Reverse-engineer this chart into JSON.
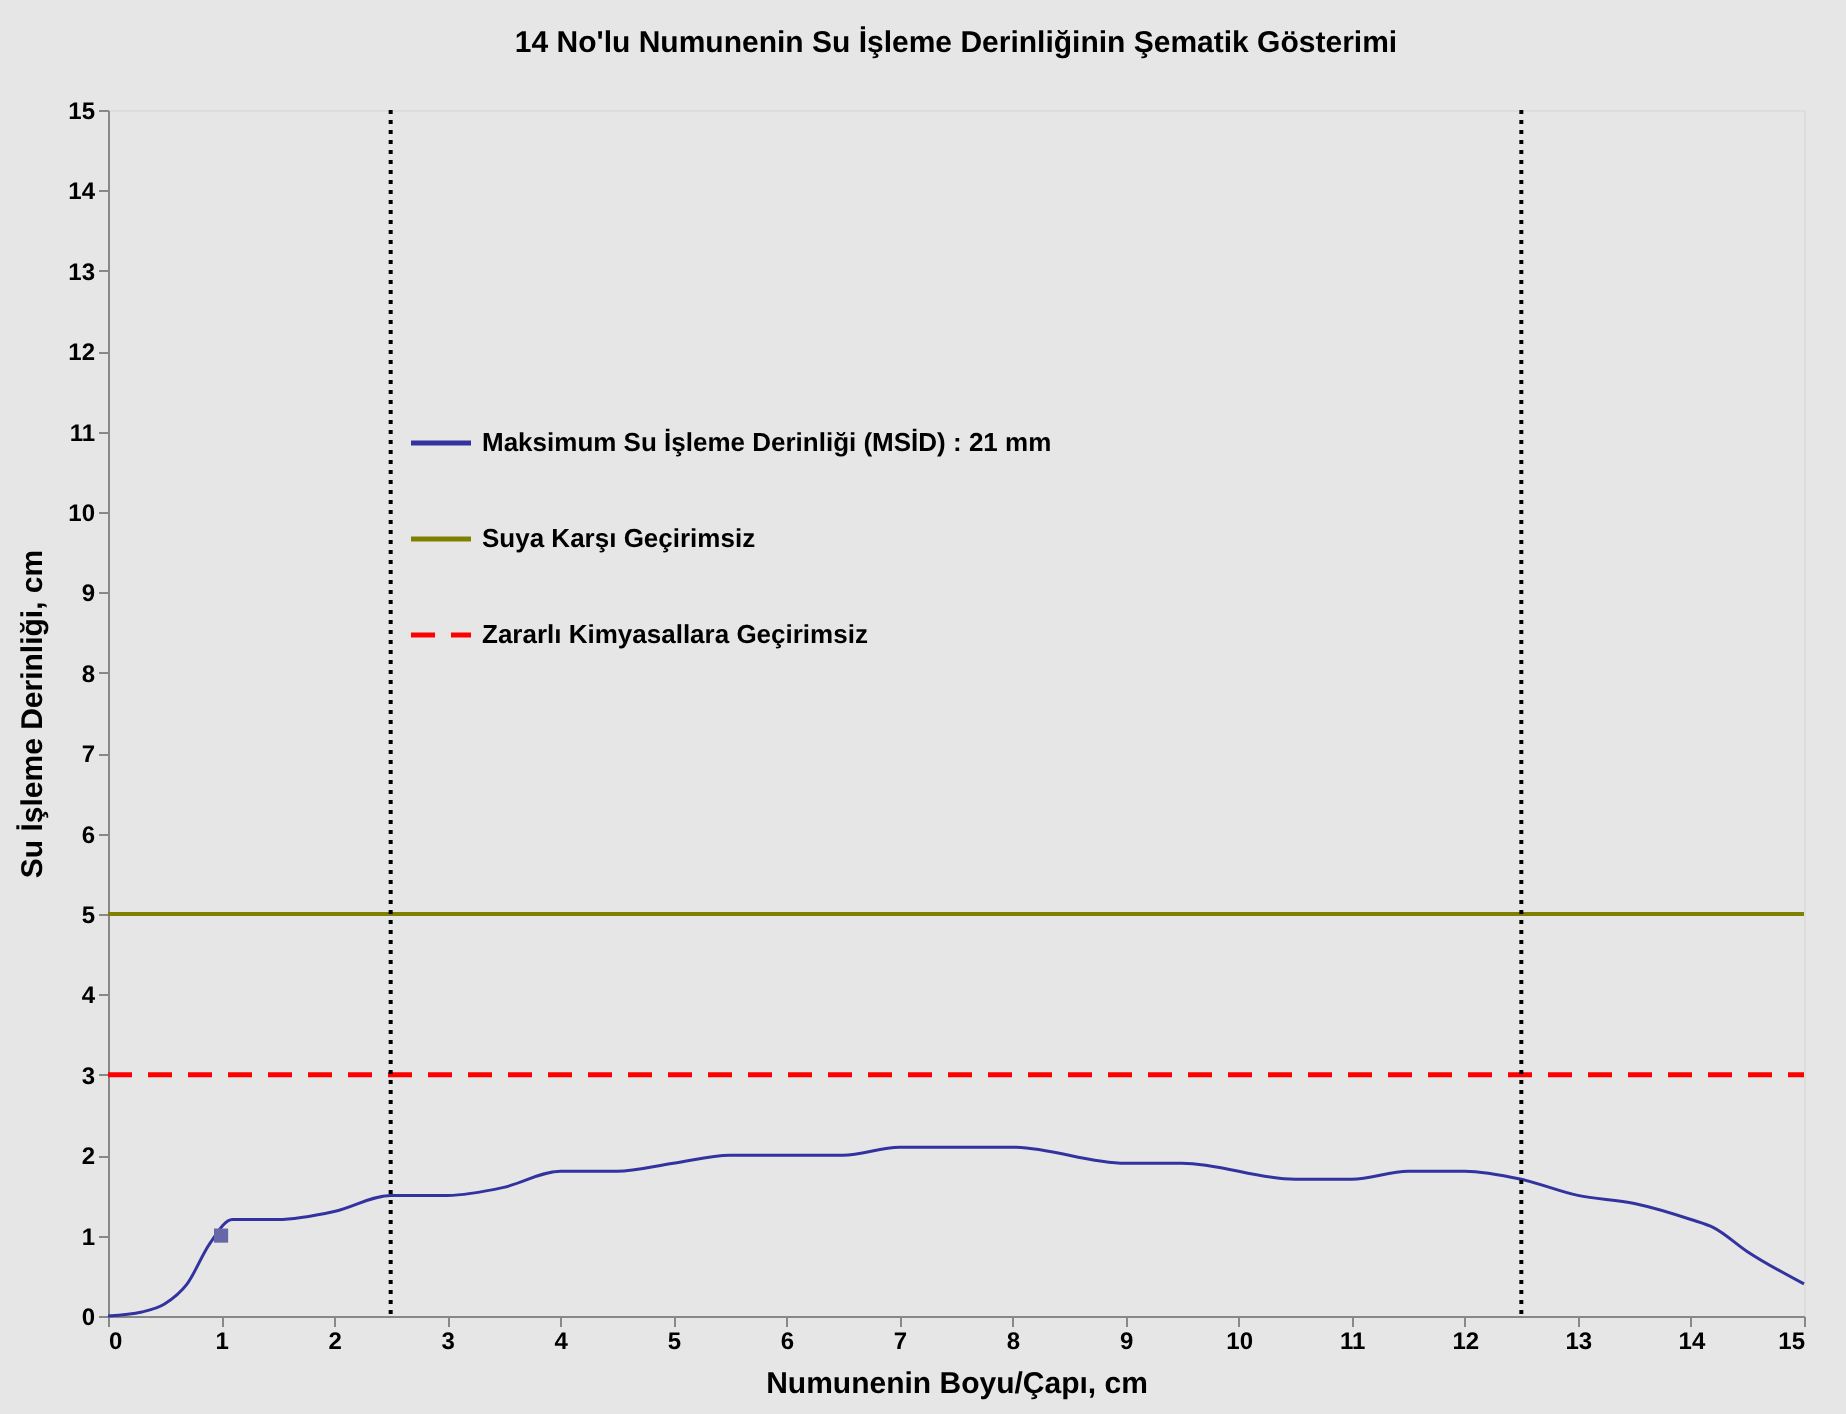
{
  "chart_data": {
    "type": "line",
    "title": "14 No'lu Numunenin Su İşleme Derinliğinin Şematik Gösterimi",
    "xlabel": "Numunenin Boyu/Çapı, cm",
    "ylabel": "Su İşleme Derinliği, cm",
    "xlim": [
      0,
      15
    ],
    "ylim": [
      0,
      15
    ],
    "xticks": [
      0,
      1,
      2,
      3,
      4,
      5,
      6,
      7,
      8,
      9,
      10,
      11,
      12,
      13,
      14,
      15
    ],
    "yticks": [
      0,
      1,
      2,
      3,
      4,
      5,
      6,
      7,
      8,
      9,
      10,
      11,
      12,
      13,
      14,
      15
    ],
    "grid": false,
    "legend": "top left",
    "series": [
      {
        "name": "Maksimum Su İşleme Derinliği (MSİD) : 21 mm",
        "color": "#3333a0",
        "marker": "none",
        "line_style": "solid",
        "x": [
          0,
          0.3,
          0.5,
          0.7,
          0.9,
          1.1,
          1.5,
          2,
          2.5,
          3,
          3.5,
          4,
          4.5,
          5,
          5.5,
          6.5,
          7,
          8,
          9,
          9.5,
          10.5,
          11,
          11.5,
          12,
          12.5,
          13,
          13.5,
          14,
          14.2,
          14.5,
          15
        ],
        "values": [
          0,
          0.05,
          0.15,
          0.4,
          0.9,
          1.2,
          1.2,
          1.3,
          1.5,
          1.5,
          1.6,
          1.8,
          1.8,
          1.9,
          2.0,
          2.0,
          2.1,
          2.1,
          1.9,
          1.9,
          1.7,
          1.7,
          1.8,
          1.8,
          1.7,
          1.5,
          1.4,
          1.2,
          1.1,
          0.8,
          0.4
        ]
      },
      {
        "type": "scatter",
        "color": "#6666a8",
        "marker": "square",
        "x": [
          1
        ],
        "values": [
          1
        ]
      }
    ],
    "ref_lines": [
      {
        "axis": "y",
        "value": 5,
        "label": "Suya Karşı Geçirimsiz",
        "color": "#808000",
        "line_style": "solid"
      },
      {
        "axis": "y",
        "value": 3,
        "label": "Zararlı Kimyasallara Geçirimsiz",
        "color": "#ff0000",
        "line_style": "dashed"
      },
      {
        "axis": "x",
        "value": 2.5,
        "color": "#000000",
        "line_style": "dotted"
      },
      {
        "axis": "x",
        "value": 12.5,
        "color": "#000000",
        "line_style": "dotted"
      }
    ]
  }
}
